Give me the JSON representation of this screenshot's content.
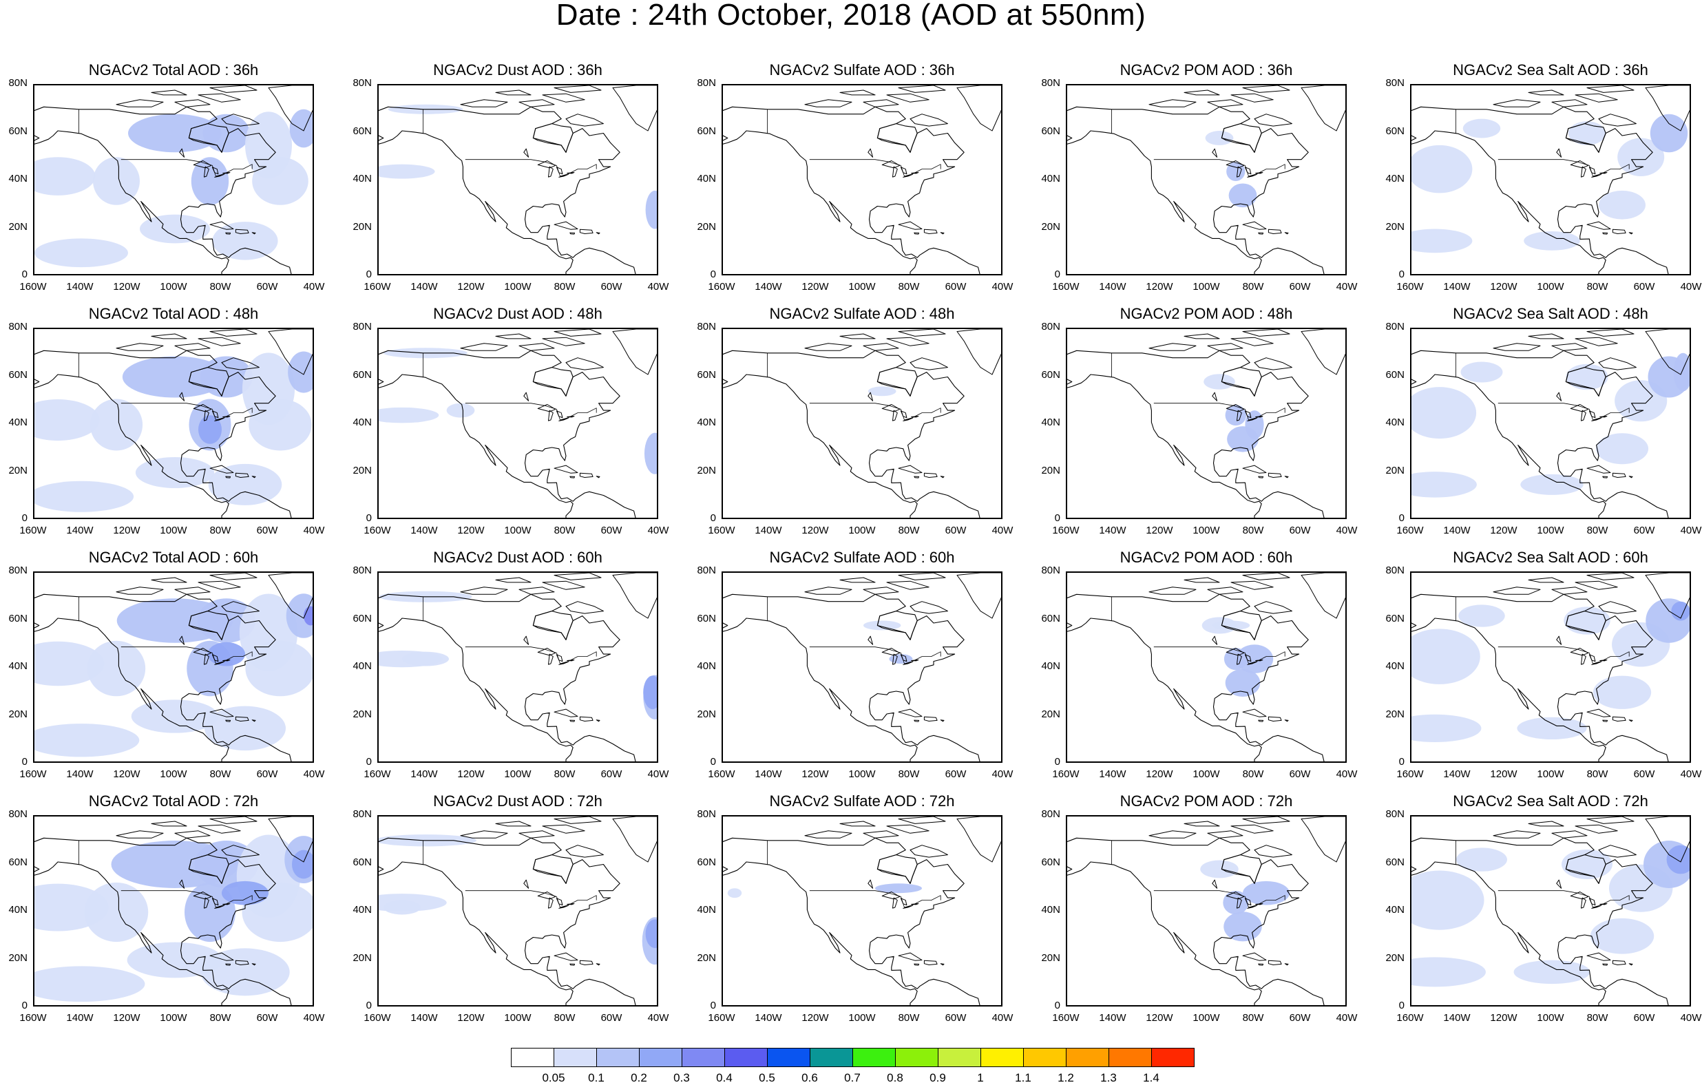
{
  "title": "Date : 24th October, 2018 (AOD at 550nm)",
  "species": [
    {
      "key": "total",
      "label": "NGACv2 Total AOD"
    },
    {
      "key": "dust",
      "label": "NGACv2 Dust AOD"
    },
    {
      "key": "sulfate",
      "label": "NGACv2 Sulfate AOD"
    },
    {
      "key": "pom",
      "label": "NGACv2 POM AOD"
    },
    {
      "key": "seasalt",
      "label": "NGACv2 Sea Salt AOD"
    }
  ],
  "panel_titles": [
    [
      "NGACv2 Total AOD : 36h",
      "NGACv2 Dust AOD : 36h",
      "NGACv2 Sulfate AOD : 36h",
      "NGACv2 POM AOD : 36h",
      "NGACv2 Sea Salt AOD : 36h"
    ],
    [
      "NGACv2 Total AOD : 48h",
      "NGACv2 Dust AOD : 48h",
      "NGACv2 Sulfate AOD : 48h",
      "NGACv2 POM AOD : 48h",
      "NGACv2 Sea Salt AOD : 48h"
    ],
    [
      "NGACv2 Total AOD : 60h",
      "NGACv2 Dust AOD : 60h",
      "NGACv2 Sulfate AOD : 60h",
      "NGACv2 POM AOD : 60h",
      "NGACv2 Sea Salt AOD : 60h"
    ],
    [
      "NGACv2 Total AOD : 72h",
      "NGACv2 Dust AOD : 72h",
      "NGACv2 Sulfate AOD : 72h",
      "NGACv2 POM AOD : 72h",
      "NGACv2 Sea Salt  AOD : 72h"
    ]
  ],
  "forecast_hours": [
    "36h",
    "48h",
    "60h",
    "72h"
  ],
  "lat_ticks": [
    "80N",
    "60N",
    "40N",
    "20N",
    "0"
  ],
  "lon_ticks": [
    "160W",
    "140W",
    "120W",
    "100W",
    "80W",
    "60W",
    "40W"
  ],
  "colorbar": {
    "colors": [
      "#ffffff",
      "#d7e0fa",
      "#b4c4f7",
      "#91a8f6",
      "#7f89f3",
      "#5b5cf0",
      "#0a55f0",
      "#0a9696",
      "#3cf00f",
      "#8cf00a",
      "#c8f03c",
      "#fff000",
      "#ffc800",
      "#ffa000",
      "#ff7800",
      "#ff2800"
    ],
    "labels": [
      "0.05",
      "0.1",
      "0.2",
      "0.3",
      "0.4",
      "0.5",
      "0.6",
      "0.7",
      "0.8",
      "0.9",
      "1",
      "1.1",
      "1.2",
      "1.3",
      "1.4"
    ]
  },
  "colors": {
    "coastline": "#000000",
    "aod_low": "#d7e0fa",
    "aod_mid": "#b4c4f7",
    "aod_high": "#7f89f3"
  }
}
